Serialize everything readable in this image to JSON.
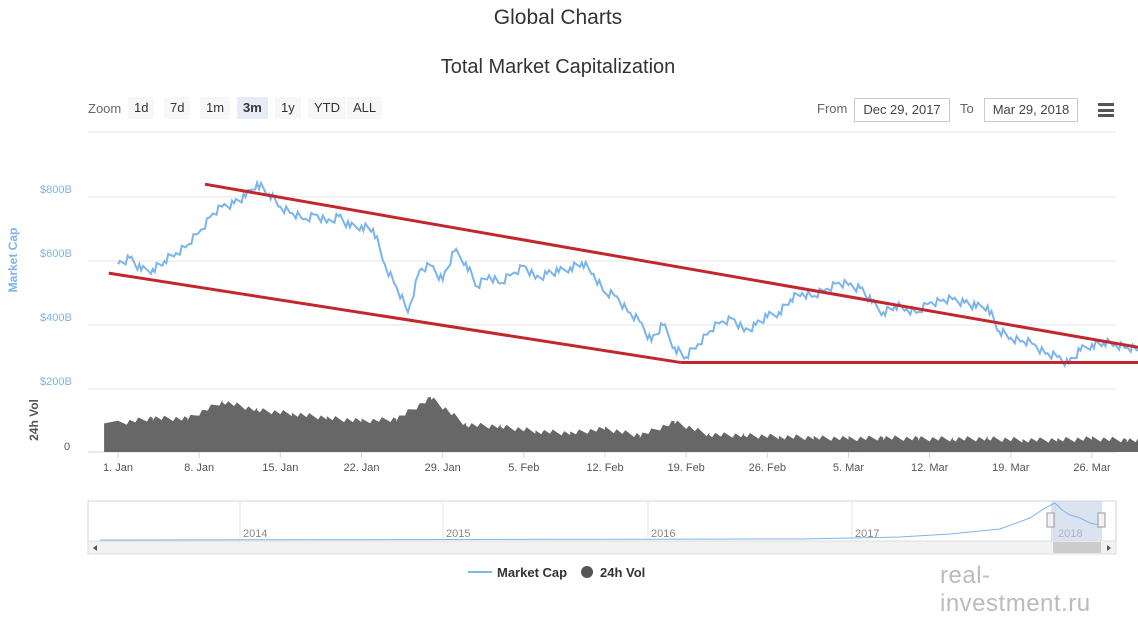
{
  "header": {
    "title": "Global Charts",
    "subtitle": "Total Market Capitalization"
  },
  "toolbar": {
    "zoom_label": "Zoom",
    "zoom_buttons": [
      "1d",
      "7d",
      "1m",
      "3m",
      "1y",
      "YTD",
      "ALL"
    ],
    "active_zoom": "3m",
    "from_label": "From",
    "from_value": "Dec 29, 2017",
    "to_label": "To",
    "to_value": "Mar 29, 2018",
    "menu_icon": "hamburger-menu-icon"
  },
  "chart_data": {
    "type": "line",
    "title": "Total Market Capitalization",
    "x_tick_labels": [
      "1. Jan",
      "8. Jan",
      "15. Jan",
      "22. Jan",
      "29. Jan",
      "5. Feb",
      "12. Feb",
      "19. Feb",
      "26. Feb",
      "5. Mar",
      "12. Mar",
      "19. Mar",
      "26. Mar"
    ],
    "y_tick_labels": [
      "$200B",
      "$400B",
      "$600B",
      "$800B"
    ],
    "ylabel": "Market Cap",
    "ylim": [
      200,
      850
    ],
    "volume_ylabel": "24h Vol",
    "volume_tick_labels": [
      "0"
    ],
    "series": [
      {
        "name": "Market Cap",
        "color": "#7cb5ec",
        "unit": "$B",
        "x_day": [
          0,
          1,
          2,
          3,
          4,
          5,
          6,
          7,
          8,
          9,
          10,
          11,
          12,
          13,
          14,
          15,
          16,
          17,
          18,
          19,
          20,
          21,
          22,
          23,
          24,
          25,
          26,
          27,
          28,
          29,
          30,
          31,
          32,
          33,
          34,
          35,
          36,
          37,
          38,
          39,
          40,
          41,
          42,
          43,
          44,
          45,
          46,
          47,
          48,
          49,
          50,
          51,
          52,
          53,
          54,
          55,
          56,
          57,
          58,
          59,
          60,
          61,
          62,
          63,
          64,
          65,
          66,
          67,
          68,
          69,
          70,
          71,
          72,
          73,
          74,
          75,
          76,
          77,
          78,
          79,
          80,
          81,
          82,
          83,
          84,
          85,
          86,
          87,
          88,
          89,
          90
        ],
        "values": [
          590,
          610,
          570,
          575,
          600,
          625,
          650,
          690,
          740,
          770,
          780,
          800,
          845,
          810,
          770,
          750,
          730,
          745,
          720,
          740,
          705,
          710,
          700,
          590,
          520,
          440,
          570,
          585,
          540,
          630,
          595,
          520,
          555,
          530,
          560,
          585,
          545,
          560,
          565,
          580,
          595,
          560,
          500,
          490,
          440,
          410,
          350,
          400,
          330,
          300,
          340,
          380,
          410,
          420,
          380,
          400,
          425,
          440,
          480,
          500,
          490,
          510,
          530,
          525,
          515,
          470,
          440,
          460,
          450,
          440,
          470,
          475,
          480,
          470,
          455,
          460,
          380,
          360,
          350,
          340,
          310,
          300,
          280,
          320,
          340,
          345,
          340,
          330,
          320,
          310,
          300
        ]
      },
      {
        "name": "24h Vol",
        "color": "#555555",
        "unit": "$B",
        "x_day": [
          0,
          3,
          6,
          9,
          12,
          15,
          18,
          21,
          24,
          27,
          30,
          33,
          36,
          39,
          42,
          45,
          48,
          51,
          54,
          57,
          60,
          63,
          66,
          69,
          72,
          75,
          78,
          81,
          84,
          87,
          90
        ],
        "values": [
          26,
          31,
          30,
          46,
          38,
          35,
          31,
          28,
          30,
          49,
          25,
          23,
          19,
          17,
          21,
          15,
          27,
          16,
          15,
          14,
          13,
          12,
          13,
          12,
          12,
          12,
          11,
          11,
          12,
          11,
          9
        ]
      }
    ],
    "annotations": [
      {
        "type": "trendline",
        "color": "#c1272d",
        "from": {
          "x_day": 7.5,
          "y": 840
        },
        "to": {
          "x_day": 91.5,
          "y": 308
        }
      },
      {
        "type": "trendline",
        "color": "#c1272d",
        "from": {
          "x_day": -0.8,
          "y": 562
        },
        "to": {
          "x_day": 48.5,
          "y": 283
        }
      },
      {
        "type": "trendline",
        "color": "#c1272d",
        "from": {
          "x_day": 48.5,
          "y": 283
        },
        "to": {
          "x_day": 91.5,
          "y": 283
        }
      }
    ],
    "navigator": {
      "year_labels": [
        "2014",
        "2015",
        "2016",
        "2017",
        "2018"
      ]
    },
    "legend": [
      {
        "name": "Market Cap",
        "symbol": "line"
      },
      {
        "name": "24h Vol",
        "symbol": "circle"
      }
    ]
  },
  "watermark": "real-investment.ru"
}
